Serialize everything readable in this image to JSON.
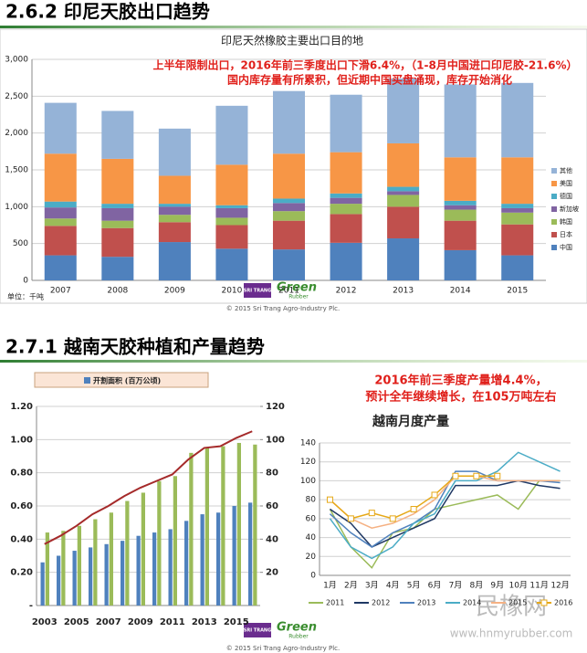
{
  "sections": [
    {
      "heading": "2.6.2 印尼天胶出口趋势"
    },
    {
      "heading": "2.7.1 越南天胶种植和产量趋势"
    }
  ],
  "footer": {
    "brand": "SRI TRANG",
    "logo_main": "Green",
    "logo_sub": "Rubber",
    "copyright": "© 2015 Sri Trang Agro-Industry Plc."
  },
  "watermark": [
    "民橡网",
    "www.hnmyrubber.com"
  ],
  "chart_data": [
    {
      "type": "stacked_bar",
      "title": "印尼天然橡胶主要出口目的地",
      "annotations": [
        "上半年限制出口，2016年前三季度出口下滑6.4%，（1-8月中国进口印尼胶-21.6%）",
        "国内库存量有所累积，但近期中国买盘涌现，库存开始消化"
      ],
      "unit_label": "单位：千吨",
      "categories": [
        "2007",
        "2008",
        "2009",
        "2010",
        "2011",
        "2012",
        "2013",
        "2014",
        "2015"
      ],
      "series": [
        {
          "name": "中国",
          "color": "#4f81bd",
          "values": [
            340,
            320,
            520,
            430,
            420,
            510,
            570,
            410,
            340
          ]
        },
        {
          "name": "日本",
          "color": "#c0504d",
          "values": [
            400,
            390,
            270,
            320,
            390,
            390,
            430,
            400,
            420
          ]
        },
        {
          "name": "韩国",
          "color": "#9bbb59",
          "values": [
            100,
            100,
            100,
            100,
            130,
            140,
            160,
            150,
            160
          ]
        },
        {
          "name": "新加坡",
          "color": "#8064a2",
          "values": [
            150,
            170,
            110,
            130,
            110,
            80,
            50,
            60,
            60
          ]
        },
        {
          "name": "德国",
          "color": "#4bacc6",
          "values": [
            80,
            60,
            40,
            40,
            60,
            60,
            60,
            60,
            60
          ]
        },
        {
          "name": "美国",
          "color": "#f79646",
          "values": [
            650,
            610,
            380,
            550,
            610,
            560,
            590,
            590,
            630
          ]
        },
        {
          "name": "其他",
          "color": "#95b3d7",
          "values": [
            690,
            650,
            640,
            800,
            850,
            780,
            880,
            990,
            1010
          ]
        }
      ],
      "ylim": [
        0,
        3000
      ],
      "yticks": [
        0,
        500,
        {
          "value": 1000,
          "label": "1,000"
        },
        {
          "value": 1500,
          "label": "1,500"
        },
        {
          "value": 2000,
          "label": "2,000"
        },
        {
          "value": 2500,
          "label": "2,500"
        },
        {
          "value": 3000,
          "label": "3,000"
        }
      ],
      "grid": true,
      "legend": "right"
    },
    {
      "type": "bar_line",
      "categories": [
        "2003",
        null,
        "2005",
        null,
        "2007",
        null,
        "2009",
        null,
        "2011",
        null,
        "2013",
        null,
        "2015",
        null
      ],
      "series": [
        {
          "name": "开割面积 (百万公顷)",
          "color": "#4f81bd",
          "kind": "bar",
          "values": [
            0.26,
            0.3,
            0.33,
            0.35,
            0.37,
            0.39,
            0.42,
            0.44,
            0.46,
            0.51,
            0.55,
            0.56,
            0.6,
            0.62
          ]
        },
        {
          "color": "#9bbb59",
          "kind": "bar",
          "axis": "y2",
          "values": [
            44,
            45,
            48,
            52,
            56,
            63,
            68,
            75,
            78,
            92,
            95,
            96,
            98,
            97
          ]
        },
        {
          "color": "#a52a2a",
          "kind": "line",
          "axis": "y2",
          "values": [
            37,
            42,
            48,
            55,
            60,
            66,
            71,
            75,
            79,
            88,
            95,
            96,
            101,
            105
          ]
        }
      ],
      "ylim": [
        0,
        1.2
      ],
      "yticks": [
        {
          "value": 0,
          "label": "-"
        },
        {
          "value": 0.2,
          "label": "0.20"
        },
        {
          "value": 0.4,
          "label": "0.40"
        },
        {
          "value": 0.6,
          "label": "0.60"
        },
        {
          "value": 0.8,
          "label": "0.80"
        },
        {
          "value": 1,
          "label": "1.00"
        },
        {
          "value": 1.2,
          "label": "1.20"
        }
      ],
      "y2lim": [
        0,
        120
      ],
      "y2ticks": [
        20,
        40,
        60,
        80,
        100,
        120
      ],
      "grid": true,
      "legend": "top"
    },
    {
      "type": "line",
      "title": "越南月度产量",
      "annotations": [
        "2016年前三季度产量增4.4%，",
        "预计全年继续增长，在105万吨左右"
      ],
      "categories": [
        "1月",
        "2月",
        "3月",
        "4月",
        "5月",
        "6月",
        "7月",
        "8月",
        "9月",
        "10月",
        "11月",
        "12月"
      ],
      "series": [
        {
          "name": "2011",
          "color": "#9bbb59",
          "values": [
            70,
            30,
            8,
            45,
            50,
            70,
            75,
            80,
            85,
            70,
            100,
            100
          ]
        },
        {
          "name": "2012",
          "color": "#1f3864",
          "values": [
            70,
            55,
            30,
            40,
            50,
            60,
            95,
            95,
            95,
            100,
            95,
            92
          ]
        },
        {
          "name": "2013",
          "color": "#4f81bd",
          "values": [
            65,
            45,
            30,
            45,
            55,
            70,
            110,
            110,
            100,
            100,
            100,
            98
          ]
        },
        {
          "name": "2014",
          "color": "#4bacc6",
          "values": [
            60,
            30,
            18,
            30,
            55,
            65,
            100,
            100,
            110,
            130,
            120,
            110
          ]
        },
        {
          "name": "2015",
          "color": "#f5b183",
          "values": [
            80,
            60,
            50,
            55,
            65,
            80,
            105,
            105,
            100,
            100,
            100,
            100
          ]
        },
        {
          "name": "2016",
          "color": "#e6a817",
          "marker": "square",
          "values": [
            80,
            60,
            66,
            60,
            70,
            85,
            105,
            105,
            105,
            null,
            null,
            null
          ]
        }
      ],
      "ylim": [
        0,
        140
      ],
      "yticks": [
        0,
        20,
        40,
        60,
        80,
        100,
        120,
        140
      ],
      "grid": true,
      "legend": "bottom"
    }
  ]
}
